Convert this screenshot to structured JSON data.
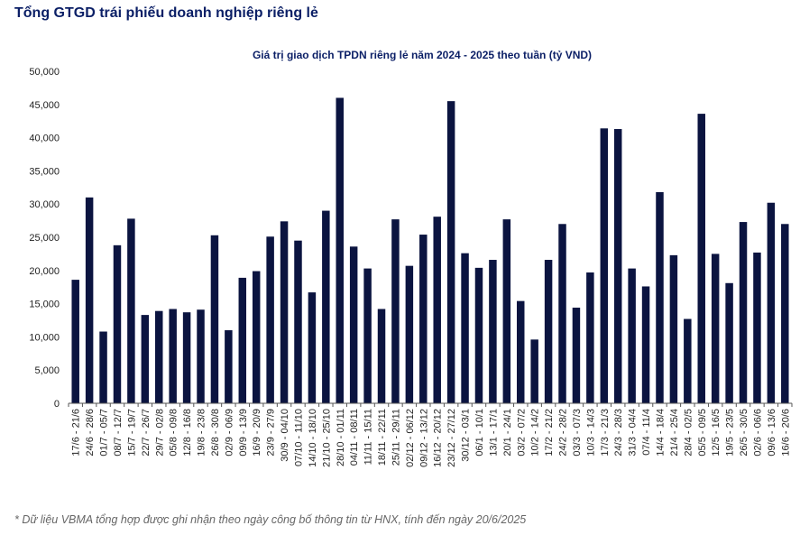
{
  "header": {
    "title": "Tổng GTGD trái phiếu doanh nghiệp riêng lẻ"
  },
  "footnote": "* Dữ liệu VBMA tổng hợp được ghi nhận theo ngày công bố thông tin từ HNX, tính đến ngày 20/6/2025",
  "colors": {
    "bar": "#0b1440",
    "title": "#0b1f66",
    "text": "#222222"
  },
  "chart_data": {
    "type": "bar",
    "title": "Giá trị giao dịch TPDN riêng lẻ năm 2024 - 2025 theo tuần (tỷ VND)",
    "xlabel": "",
    "ylabel": "",
    "ylim": [
      0,
      50000
    ],
    "yticks": [
      0,
      5000,
      10000,
      15000,
      20000,
      25000,
      30000,
      35000,
      40000,
      45000,
      50000
    ],
    "ytick_labels": [
      "0",
      "5,000",
      "10,000",
      "15,000",
      "20,000",
      "25,000",
      "30,000",
      "35,000",
      "40,000",
      "45,000",
      "50,000"
    ],
    "grid": false,
    "categories": [
      "17/6 - 21/6",
      "24/6 - 28/6",
      "01/7 - 05/7",
      "08/7 - 12/7",
      "15/7 - 19/7",
      "22/7 - 26/7",
      "29/7 - 02/8",
      "05/8 - 09/8",
      "12/8 - 16/8",
      "19/8 - 23/8",
      "26/8 - 30/8",
      "02/9 - 06/9",
      "09/9 - 13/9",
      "16/9 - 20/9",
      "23/9 - 27/9",
      "30/9 - 04/10",
      "07/10 - 11/10",
      "14/10 - 18/10",
      "21/10 - 25/10",
      "28/10 - 01/11",
      "04/11 - 08/11",
      "11/11 - 15/11",
      "18/11 - 22/11",
      "25/11 - 29/11",
      "02/12 - 06/12",
      "09/12 - 13/12",
      "16/12 - 20/12",
      "23/12 - 27/12",
      "30/12 - 03/1",
      "06/1 - 10/1",
      "13/1 - 17/1",
      "20/1 - 24/1",
      "03/2 - 07/2",
      "10/2 - 14/2",
      "17/2 - 21/2",
      "24/2 - 28/2",
      "03/3 - 07/3",
      "10/3 - 14/3",
      "17/3 - 21/3",
      "24/3 - 28/3",
      "31/3 - 04/4",
      "07/4 - 11/4",
      "14/4 - 18/4",
      "21/4 - 25/4",
      "28/4 - 02/5",
      "05/5 - 09/5",
      "12/5 - 16/5",
      "19/5 - 23/5",
      "26/5 - 30/5",
      "02/6 - 06/6",
      "09/6 - 13/6",
      "16/6 - 20/6"
    ],
    "values": [
      18600,
      31000,
      10800,
      23800,
      27800,
      13300,
      13900,
      14200,
      13700,
      14100,
      25300,
      11000,
      18900,
      19900,
      25100,
      27400,
      24500,
      16700,
      29000,
      46000,
      23600,
      20300,
      14200,
      27700,
      20700,
      25400,
      28100,
      45500,
      22600,
      20400,
      21600,
      27700,
      15400,
      9600,
      21600,
      27000,
      14400,
      19700,
      41400,
      41300,
      20300,
      17600,
      31800,
      22300,
      12700,
      43600,
      22500,
      18100,
      27300,
      22700,
      30200,
      27000
    ]
  }
}
